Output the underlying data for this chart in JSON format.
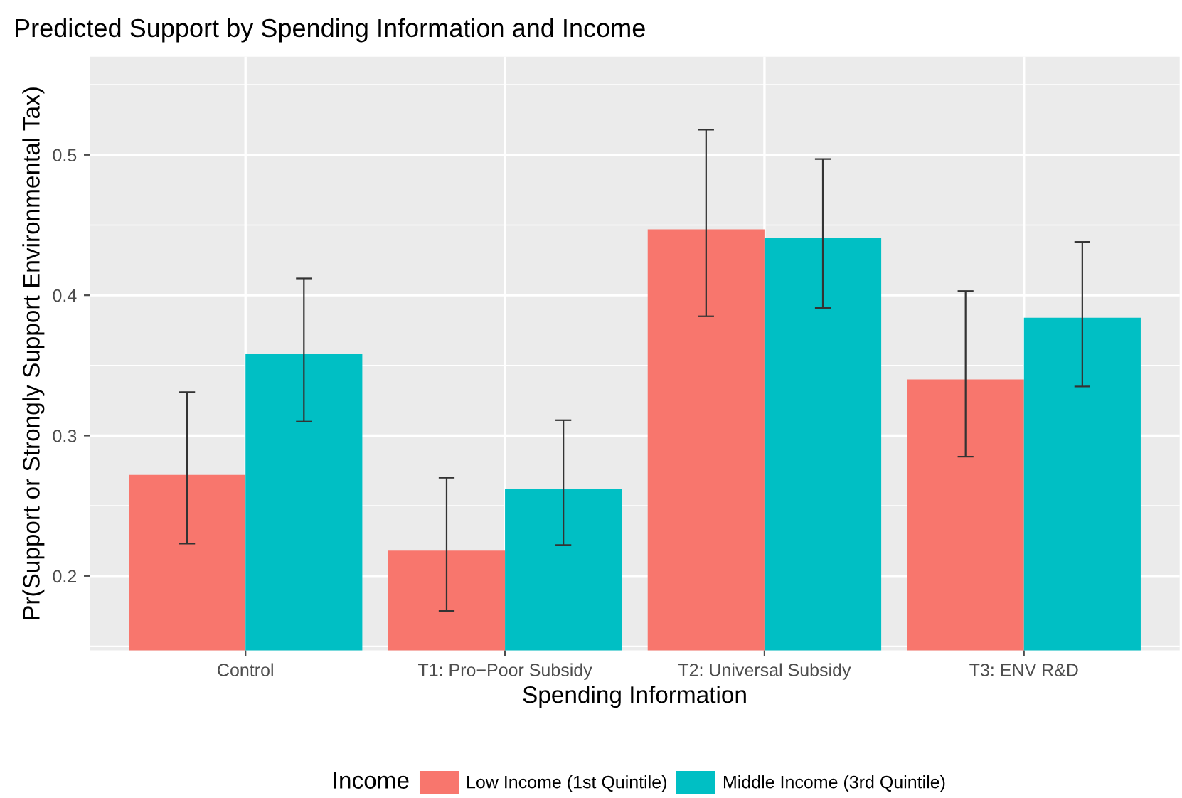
{
  "chart_data": {
    "type": "bar",
    "title": "Predicted Support by Spending Information and Income",
    "xlabel": "Spending Information",
    "ylabel": "Pr(Support or Strongly Support Environmental Tax)",
    "legend_title": "Income",
    "categories": [
      "Control",
      "T1: Pro−Poor Subsidy",
      "T2: Universal Subsidy",
      "T3: ENV R&D"
    ],
    "series": [
      {
        "name": "Low Income (1st Quintile)",
        "color": "#f8766d",
        "values": [
          0.272,
          0.218,
          0.447,
          0.34
        ],
        "errors": [
          [
            0.223,
            0.331
          ],
          [
            0.175,
            0.27
          ],
          [
            0.385,
            0.518
          ],
          [
            0.285,
            0.403
          ]
        ]
      },
      {
        "name": "Middle Income (3rd Quintile)",
        "color": "#00bfc4",
        "values": [
          0.358,
          0.262,
          0.441,
          0.384
        ],
        "errors": [
          [
            0.31,
            0.412
          ],
          [
            0.222,
            0.311
          ],
          [
            0.391,
            0.497
          ],
          [
            0.335,
            0.438
          ]
        ]
      }
    ],
    "ylim": [
      0.147,
      0.57
    ],
    "yticks": [
      0.2,
      0.3,
      0.4,
      0.5
    ],
    "grid": true,
    "legend": "bottom"
  }
}
